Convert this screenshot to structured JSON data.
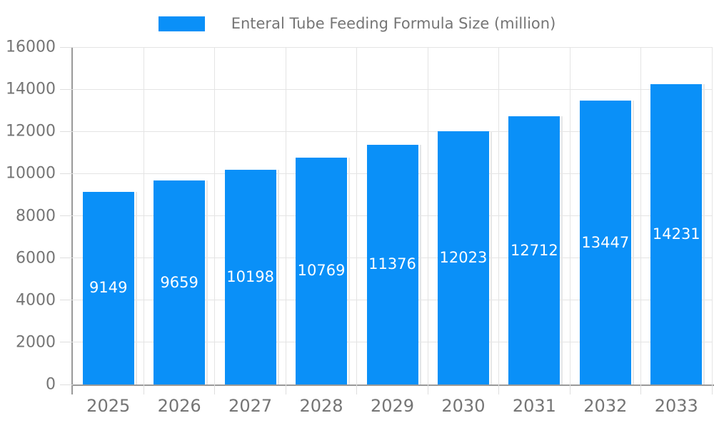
{
  "chart_data": {
    "type": "bar",
    "legend": "Enteral Tube Feeding Formula Size (million)",
    "legend_position": "top",
    "categories": [
      "2025",
      "2026",
      "2027",
      "2028",
      "2029",
      "2030",
      "2031",
      "2032",
      "2033"
    ],
    "values": [
      9149,
      9659,
      10198,
      10769,
      11376,
      12023,
      12712,
      13447,
      14231
    ],
    "value_labels": [
      "9149",
      "9659",
      "10198",
      "10769",
      "11376",
      "12023",
      "12712",
      "13447",
      "14231"
    ],
    "xlabel": "",
    "ylabel": "",
    "ylim": [
      0,
      16000
    ],
    "ytick_step": 2000,
    "ytick_labels": [
      "0",
      "2000",
      "4000",
      "6000",
      "8000",
      "10000",
      "12000",
      "14000",
      "16000"
    ],
    "grid": true,
    "colors": {
      "bar": "#0a90f8",
      "bar_value_text": "#ffffff",
      "axis_line": "#999999",
      "gridline": "#e4e4e4",
      "tick": "#dedede",
      "text": "#757575"
    }
  }
}
